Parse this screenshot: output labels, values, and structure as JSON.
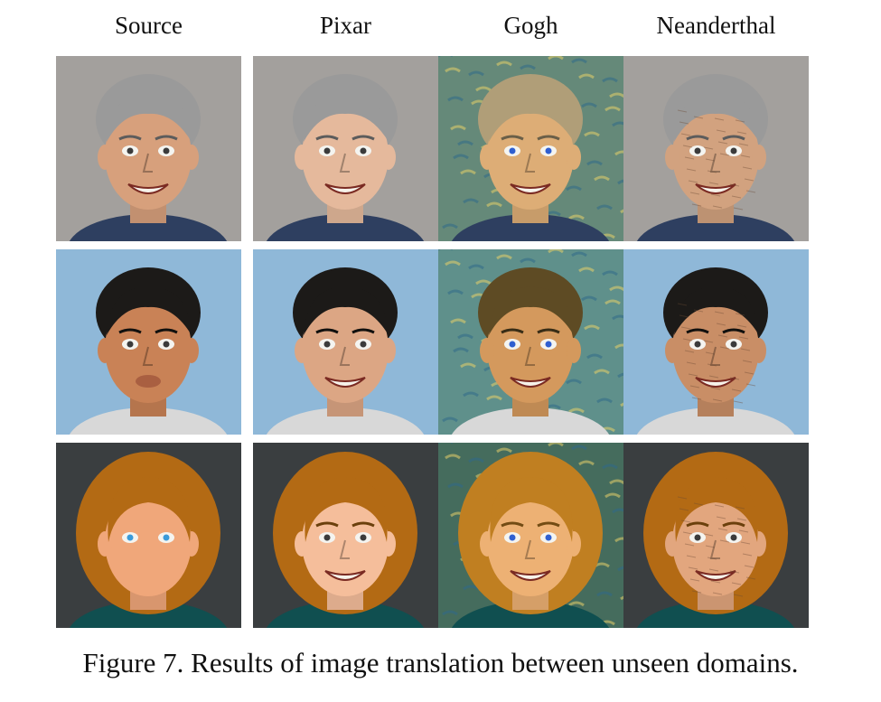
{
  "columns": [
    {
      "key": "source",
      "label": "Source"
    },
    {
      "key": "pixar",
      "label": "Pixar"
    },
    {
      "key": "gogh",
      "label": "Gogh"
    },
    {
      "key": "neanderthal",
      "label": "Neanderthal"
    }
  ],
  "rows": [
    {
      "subject": "gray-haired man, painted caricature",
      "bg": "#a3a09d",
      "skin": "#d7a07c",
      "hair": "#9a9a9a",
      "shirt": "#2e3f60"
    },
    {
      "subject": "dark-haired cartoon man",
      "bg": "#8fb8d8",
      "skin": "#c98256",
      "hair": "#1c1a18",
      "shirt": "#d8d8d8"
    },
    {
      "subject": "red-haired woman, flat drawing",
      "bg": "#3a3e40",
      "skin": "#f0a77a",
      "hair": "#b36a14",
      "shirt": "#104f50"
    }
  ],
  "styles": {
    "source": {
      "tint": "#ffffff",
      "texture": "smooth"
    },
    "pixar": {
      "tint": "#ffe8d8",
      "texture": "smooth"
    },
    "gogh": {
      "tint": "#e8c46a",
      "texture": "brushstroke",
      "bg_override": "#4a7f6a"
    },
    "neanderthal": {
      "tint": "#c9a584",
      "texture": "rough"
    }
  },
  "caption": "Figure 7. Results of image translation between unseen domains."
}
